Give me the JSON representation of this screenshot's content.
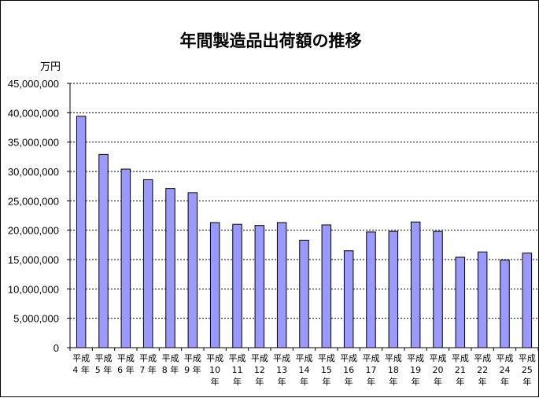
{
  "chart_data": {
    "type": "bar",
    "title": "年間製造品出荷額の推移",
    "unit_label": "万円",
    "categories": [
      "平成4年",
      "平成5年",
      "平成6年",
      "平成7年",
      "平成8年",
      "平成9年",
      "平成10年",
      "平成11年",
      "平成12年",
      "平成13年",
      "平成14年",
      "平成15年",
      "平成16年",
      "平成17年",
      "平成18年",
      "平成19年",
      "平成20年",
      "平成21年",
      "平成22年",
      "平成24年",
      "平成25年"
    ],
    "values": [
      39400000,
      32900000,
      30400000,
      28600000,
      27100000,
      26400000,
      21300000,
      21000000,
      20800000,
      21300000,
      18300000,
      20900000,
      16500000,
      19700000,
      19800000,
      21400000,
      19800000,
      15400000,
      16300000,
      14900000,
      16100000
    ],
    "ylim": [
      0,
      45000000
    ],
    "yticks": [
      {
        "value": 0,
        "label": "0"
      },
      {
        "value": 5000000,
        "label": "5,000,000"
      },
      {
        "value": 10000000,
        "label": "10,000,000"
      },
      {
        "value": 15000000,
        "label": "15,000,000"
      },
      {
        "value": 20000000,
        "label": "20,000,000"
      },
      {
        "value": 25000000,
        "label": "25,000,000"
      },
      {
        "value": 30000000,
        "label": "30,000,000"
      },
      {
        "value": 35000000,
        "label": "35,000,000"
      },
      {
        "value": 40000000,
        "label": "40,000,000"
      },
      {
        "value": 45000000,
        "label": "45,000,000"
      }
    ],
    "grid": true,
    "bar_color": "#9999ff",
    "bar_border_color": "#000000"
  }
}
